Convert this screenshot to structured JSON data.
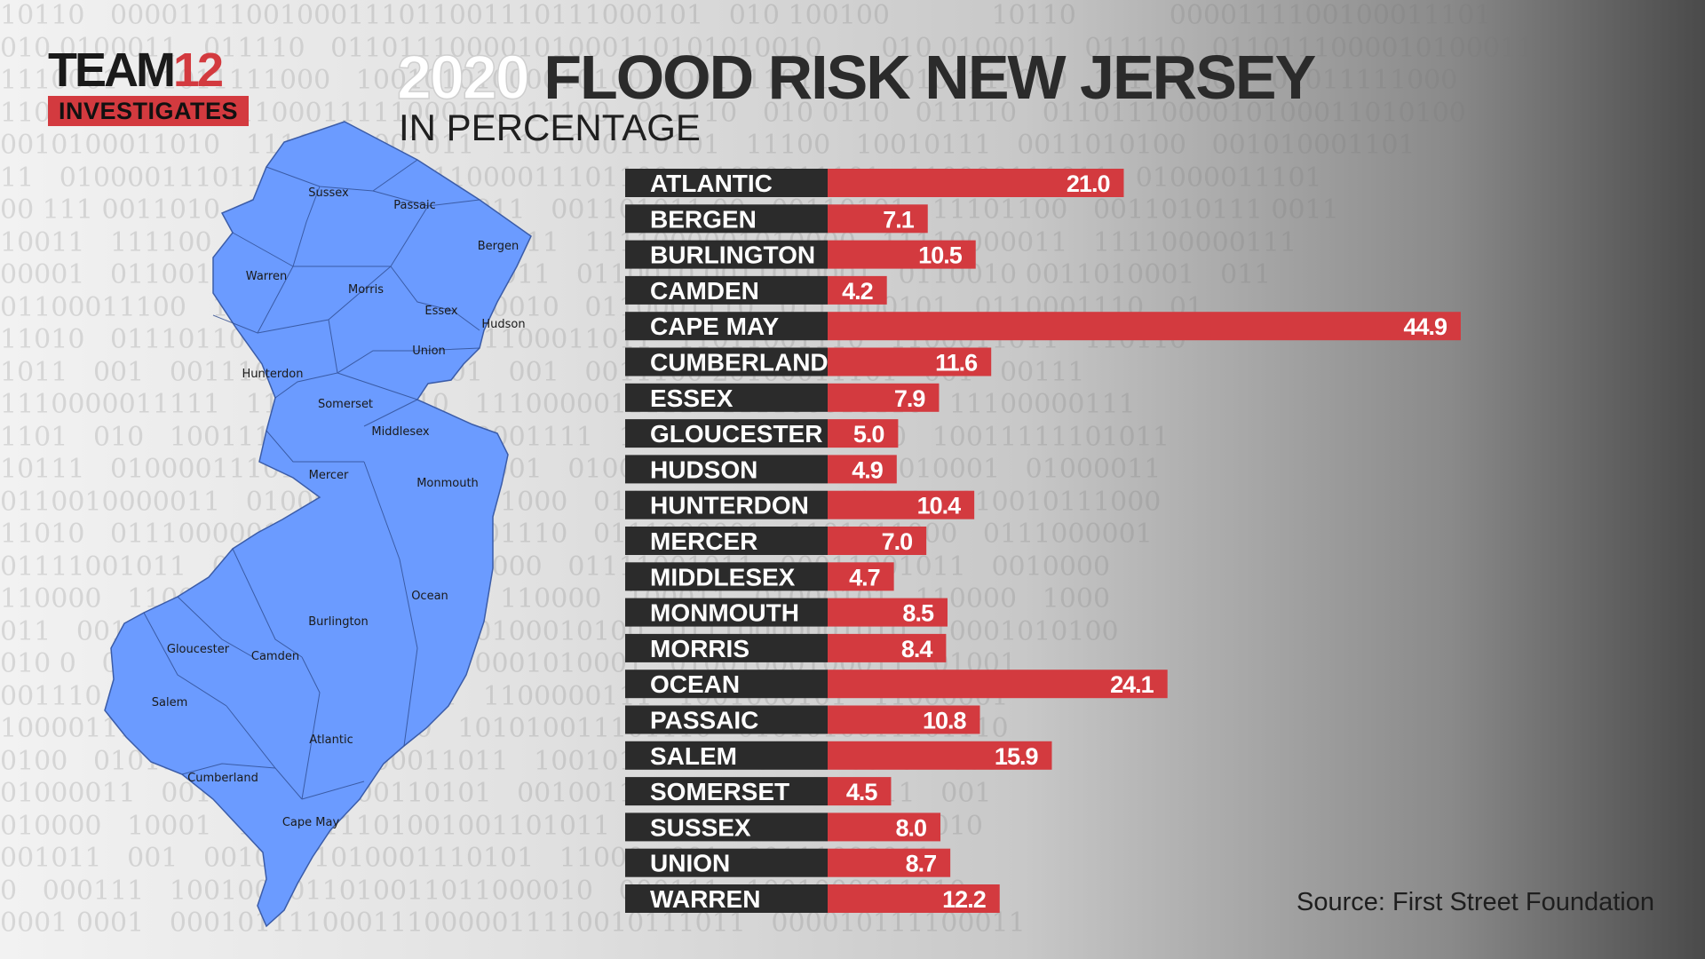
{
  "logo": {
    "word": "TEAM",
    "number": "12",
    "bar": "INVESTIGATES"
  },
  "header": {
    "title_year": "2020",
    "title_rest": "FLOOD RISK NEW JERSEY",
    "subtitle": "IN PERCENTAGE"
  },
  "source": "Source: First Street Foundation",
  "colors": {
    "bar": "#d33a3f",
    "label_bg": "#2b2b2b",
    "map_fill": "#6b9bff",
    "map_stroke": "#3b5ca8"
  },
  "map": {
    "counties": [
      "Sussex",
      "Passaic",
      "Bergen",
      "Warren",
      "Morris",
      "Essex",
      "Hudson",
      "Union",
      "Hunterdon",
      "Somerset",
      "Middlesex",
      "Mercer",
      "Monmouth",
      "Ocean",
      "Burlington",
      "Gloucester",
      "Camden",
      "Salem",
      "Atlantic",
      "Cumberland",
      "Cape May"
    ]
  },
  "chart_data": {
    "type": "bar",
    "orientation": "horizontal",
    "title": "2020 FLOOD RISK NEW JERSEY",
    "subtitle": "IN PERCENTAGE",
    "categories": [
      "ATLANTIC",
      "BERGEN",
      "BURLINGTON",
      "CAMDEN",
      "CAPE MAY",
      "CUMBERLAND",
      "ESSEX",
      "GLOUCESTER",
      "HUDSON",
      "HUNTERDON",
      "MERCER",
      "MIDDLESEX",
      "MONMOUTH",
      "MORRIS",
      "OCEAN",
      "PASSAIC",
      "SALEM",
      "SOMERSET",
      "SUSSEX",
      "UNION",
      "WARREN"
    ],
    "values": [
      21.0,
      7.1,
      10.5,
      4.2,
      44.9,
      11.6,
      7.9,
      5.0,
      4.9,
      10.4,
      7.0,
      4.7,
      8.5,
      8.4,
      24.1,
      10.8,
      15.9,
      4.5,
      8.0,
      8.7,
      12.2
    ],
    "value_labels": [
      "21.0",
      "7.1",
      "10.5",
      "4.2",
      "44.9",
      "11.6",
      "7.9",
      "5.0",
      "4.9",
      "10.4",
      "7.0",
      "4.7",
      "8.5",
      "8.4",
      "24.1",
      "10.8",
      "15.9",
      "4.5",
      "8.0",
      "8.7",
      "12.2"
    ],
    "xlim": [
      0,
      45
    ],
    "grid": false,
    "legend": "none"
  }
}
